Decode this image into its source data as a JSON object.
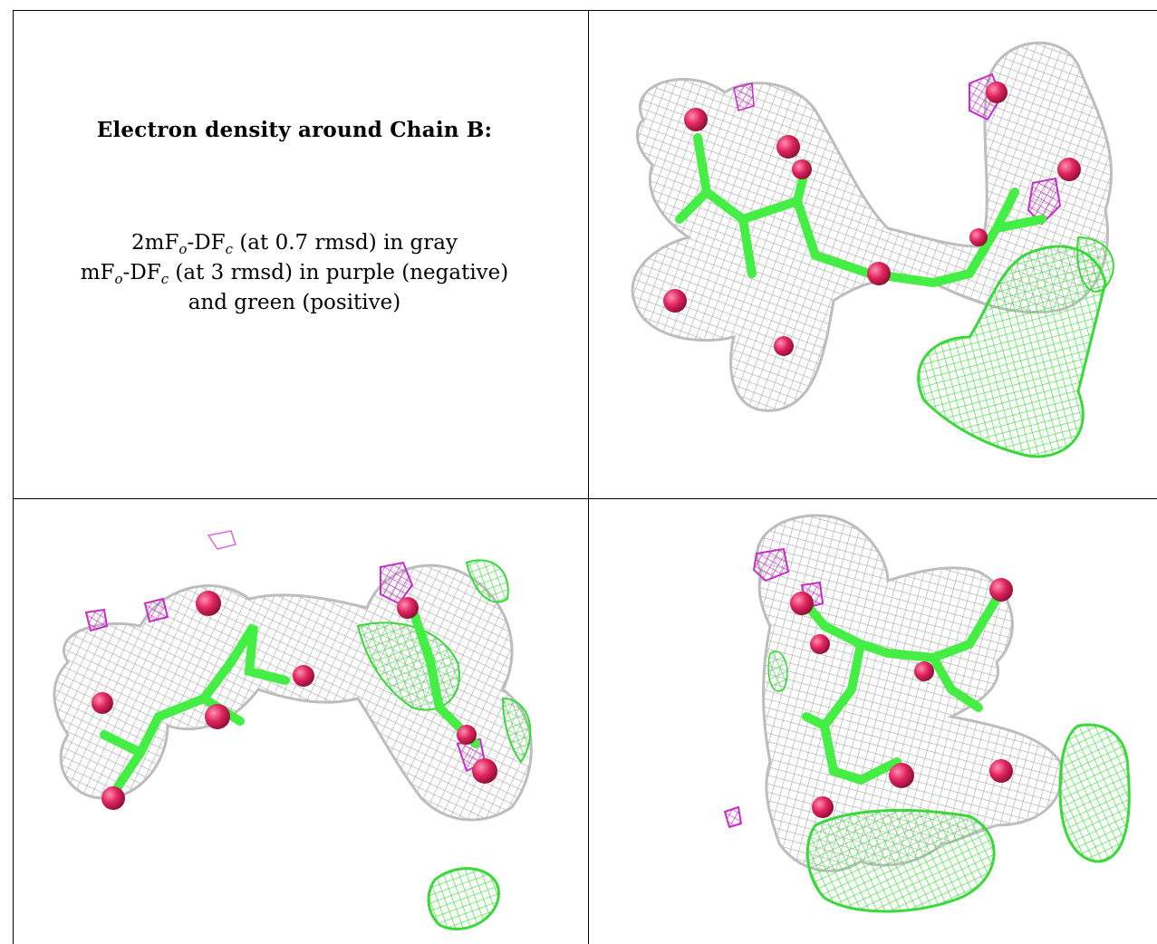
{
  "caption": {
    "title": "Electron density around Chain B:",
    "line1": {
      "pre": "2mF",
      "sub1": "o",
      "mid": "-DF",
      "sub2": "c",
      "post": " (at 0.7 rmsd) in gray"
    },
    "line2": {
      "pre": "mF",
      "sub1": "o",
      "mid": "-DF",
      "sub2": "c",
      "post": " (at 3 rmsd) in purple (negative)"
    },
    "line3": "and green (positive)"
  },
  "colors": {
    "mesh_gray": "#b8b8b8",
    "mesh_green": "#39e639",
    "mesh_purple": "#cc33cc",
    "atom_oxygen": "#e0245e",
    "bond_carbon": "#44ee44"
  },
  "panels": [
    {
      "name": "view-top-right",
      "icon": "electron-density-mesh"
    },
    {
      "name": "view-bottom-left",
      "icon": "electron-density-mesh"
    },
    {
      "name": "view-bottom-right",
      "icon": "electron-density-mesh"
    }
  ]
}
